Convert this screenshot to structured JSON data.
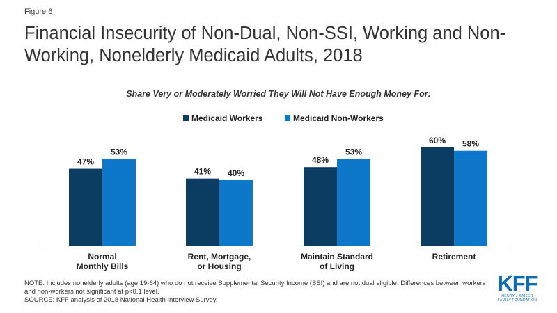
{
  "figure_label": "Figure 6",
  "footer": {
    "note": "NOTE: Includes nonelderly adults (age 19-64) who do not receive Supplemental Security Income (SSI) and are not dual eligible. Differences between workers and non-workers not significant at p<0.1 level.",
    "source": "SOURCE: KFF analysis of 2018 National Health Interview Survey."
  },
  "logo": {
    "mark": "KFF",
    "line1": "HENRY J KAISER",
    "line2": "FAMILY FOUNDATION"
  },
  "chart_data": {
    "type": "bar",
    "title": "Financial Insecurity of Non-Dual, Non-SSI, Working and Non-Working, Nonelderly Medicaid Adults, 2018",
    "subtitle": "Share Very or Moderately Worried They Will Not Have Enough Money For:",
    "categories": [
      [
        "Normal",
        "Monthly Bills"
      ],
      [
        "Rent, Mortgage,",
        "or Housing"
      ],
      [
        "Maintain Standard",
        "of Living"
      ],
      [
        "Retirement"
      ]
    ],
    "series": [
      {
        "name": "Medicaid Workers",
        "color": "#0b3c62",
        "values": [
          47,
          41,
          48,
          60
        ]
      },
      {
        "name": "Medicaid Non-Workers",
        "color": "#0d78c9",
        "values": [
          53,
          40,
          53,
          58
        ]
      }
    ],
    "value_suffix": "%",
    "ylim": [
      0,
      60
    ],
    "legend_position": "top-center",
    "grid": false
  }
}
